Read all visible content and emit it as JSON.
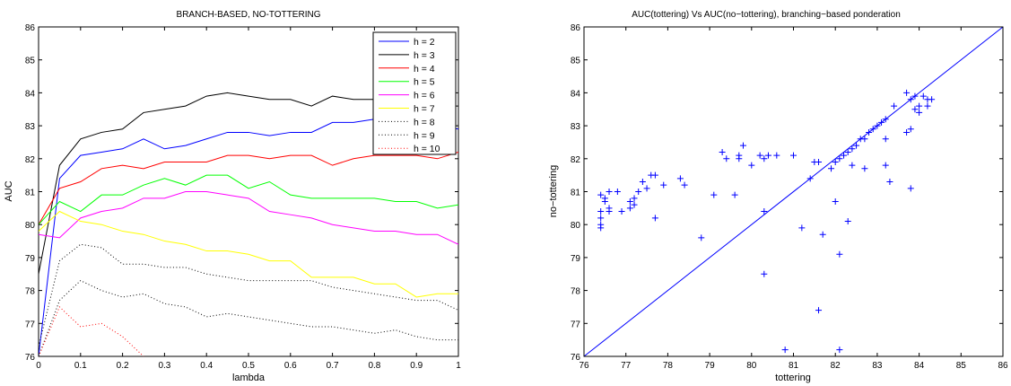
{
  "chart_data": [
    {
      "type": "line",
      "title": "BRANCH-BASED, NO-TOTTERING",
      "xlabel": "lambda",
      "ylabel": "AUC",
      "xlim": [
        0,
        1
      ],
      "ylim": [
        76,
        86
      ],
      "xticks": [
        0,
        0.1,
        0.2,
        0.3,
        0.4,
        0.5,
        0.6,
        0.7,
        0.8,
        0.9,
        1
      ],
      "xtick_labels": [
        "0",
        "0.1",
        "0.2",
        "0.3",
        "0.4",
        "0.5",
        "0.6",
        "0.7",
        "0.8",
        "0.9",
        "1"
      ],
      "yticks": [
        76,
        77,
        78,
        79,
        80,
        81,
        82,
        83,
        84,
        85,
        86
      ],
      "ytick_labels": [
        "76",
        "77",
        "78",
        "79",
        "80",
        "81",
        "82",
        "83",
        "84",
        "85",
        "86"
      ],
      "grid": false,
      "legend_position": "top-right",
      "x": [
        0,
        0.05,
        0.1,
        0.15,
        0.2,
        0.25,
        0.3,
        0.35,
        0.4,
        0.45,
        0.5,
        0.55,
        0.6,
        0.65,
        0.7,
        0.75,
        0.8,
        0.85,
        0.9,
        0.95,
        1
      ],
      "series": [
        {
          "name": "h = 2",
          "color": "#0000ff",
          "style": "solid",
          "values": [
            76.0,
            81.4,
            82.1,
            82.2,
            82.3,
            82.6,
            82.3,
            82.4,
            82.6,
            82.8,
            82.8,
            82.7,
            82.8,
            82.8,
            83.1,
            83.1,
            83.2,
            83.2,
            83.1,
            83.0,
            82.9
          ]
        },
        {
          "name": "h = 3",
          "color": "#000000",
          "style": "solid",
          "values": [
            78.5,
            81.8,
            82.6,
            82.8,
            82.9,
            83.4,
            83.5,
            83.6,
            83.9,
            84.0,
            83.9,
            83.8,
            83.8,
            83.6,
            83.9,
            83.8,
            83.8,
            83.7,
            83.6,
            83.6,
            83.6
          ]
        },
        {
          "name": "h = 4",
          "color": "#ff0000",
          "style": "solid",
          "values": [
            80.0,
            81.1,
            81.3,
            81.7,
            81.8,
            81.7,
            81.9,
            81.9,
            81.9,
            82.1,
            82.1,
            82.0,
            82.1,
            82.1,
            81.8,
            82.0,
            82.1,
            82.1,
            82.1,
            82.0,
            82.2
          ]
        },
        {
          "name": "h = 5",
          "color": "#00ff00",
          "style": "solid",
          "values": [
            80.0,
            80.7,
            80.4,
            80.9,
            80.9,
            81.2,
            81.4,
            81.2,
            81.5,
            81.5,
            81.1,
            81.3,
            80.9,
            80.8,
            80.8,
            80.8,
            80.8,
            80.7,
            80.7,
            80.5,
            80.6
          ]
        },
        {
          "name": "h = 6",
          "color": "#ff00ff",
          "style": "solid",
          "values": [
            79.7,
            79.6,
            80.2,
            80.4,
            80.5,
            80.8,
            80.8,
            81.0,
            81.0,
            80.9,
            80.8,
            80.4,
            80.3,
            80.2,
            80.0,
            79.9,
            79.8,
            79.8,
            79.7,
            79.7,
            79.4
          ]
        },
        {
          "name": "h = 7",
          "color": "#ffff00",
          "style": "solid",
          "values": [
            79.8,
            80.4,
            80.1,
            80.0,
            79.8,
            79.7,
            79.5,
            79.4,
            79.2,
            79.2,
            79.1,
            78.9,
            78.9,
            78.4,
            78.4,
            78.4,
            78.2,
            78.2,
            77.8,
            77.9,
            77.9
          ]
        },
        {
          "name": "h = 8",
          "color": "#000000",
          "style": "dotted",
          "values": [
            76.3,
            78.9,
            79.4,
            79.3,
            78.8,
            78.8,
            78.7,
            78.7,
            78.5,
            78.4,
            78.3,
            78.3,
            78.3,
            78.3,
            78.1,
            78.0,
            77.9,
            77.8,
            77.7,
            77.7,
            77.4
          ]
        },
        {
          "name": "h = 9",
          "color": "#000000",
          "style": "dotted",
          "values": [
            76.0,
            77.7,
            78.3,
            78.0,
            77.8,
            77.9,
            77.6,
            77.5,
            77.2,
            77.3,
            77.2,
            77.1,
            77.0,
            76.9,
            76.9,
            76.8,
            76.7,
            76.8,
            76.6,
            76.5,
            76.5
          ]
        },
        {
          "name": "h = 10",
          "color": "#ff0000",
          "style": "dotted",
          "values": [
            76.0,
            77.5,
            76.9,
            77.0,
            76.6,
            76.0,
            null,
            null,
            null,
            null,
            null,
            null,
            null,
            null,
            null,
            null,
            null,
            null,
            null,
            null,
            null
          ]
        }
      ]
    },
    {
      "type": "scatter",
      "title": "AUC(tottering) Vs AUC(no−tottering), branching−based ponderation",
      "xlabel": "tottering",
      "ylabel": "no−tottering",
      "xlim": [
        76,
        86
      ],
      "ylim": [
        76,
        86
      ],
      "xticks": [
        76,
        77,
        78,
        79,
        80,
        81,
        82,
        83,
        84,
        85,
        86
      ],
      "xtick_labels": [
        "76",
        "77",
        "78",
        "79",
        "80",
        "81",
        "82",
        "83",
        "84",
        "85",
        "86"
      ],
      "yticks": [
        76,
        77,
        78,
        79,
        80,
        81,
        82,
        83,
        84,
        85,
        86
      ],
      "ytick_labels": [
        "76",
        "77",
        "78",
        "79",
        "80",
        "81",
        "82",
        "83",
        "84",
        "85",
        "86"
      ],
      "grid": false,
      "marker": "+",
      "color": "#0000ff",
      "reference_line": {
        "from": [
          76,
          76
        ],
        "to": [
          86,
          86
        ]
      },
      "points": [
        [
          76.4,
          80.9
        ],
        [
          76.4,
          80.4
        ],
        [
          76.4,
          80.2
        ],
        [
          76.4,
          80.0
        ],
        [
          76.4,
          79.9
        ],
        [
          76.5,
          80.8
        ],
        [
          76.5,
          80.7
        ],
        [
          76.6,
          81.0
        ],
        [
          76.6,
          80.5
        ],
        [
          76.6,
          80.4
        ],
        [
          76.8,
          81.0
        ],
        [
          76.9,
          80.4
        ],
        [
          77.1,
          80.7
        ],
        [
          77.1,
          80.5
        ],
        [
          77.2,
          80.6
        ],
        [
          77.2,
          80.8
        ],
        [
          77.3,
          81.0
        ],
        [
          77.4,
          81.3
        ],
        [
          77.5,
          81.1
        ],
        [
          77.6,
          81.5
        ],
        [
          77.7,
          81.5
        ],
        [
          77.7,
          80.2
        ],
        [
          77.9,
          81.2
        ],
        [
          78.3,
          81.4
        ],
        [
          78.4,
          81.2
        ],
        [
          78.8,
          79.6
        ],
        [
          79.1,
          80.9
        ],
        [
          79.3,
          82.2
        ],
        [
          79.4,
          82.0
        ],
        [
          79.6,
          80.9
        ],
        [
          79.7,
          82.1
        ],
        [
          79.7,
          82.0
        ],
        [
          79.8,
          82.4
        ],
        [
          80.0,
          81.8
        ],
        [
          80.2,
          82.1
        ],
        [
          80.3,
          82.0
        ],
        [
          80.3,
          80.4
        ],
        [
          80.3,
          78.5
        ],
        [
          80.4,
          82.1
        ],
        [
          80.6,
          82.1
        ],
        [
          80.8,
          76.2
        ],
        [
          81.0,
          82.1
        ],
        [
          81.2,
          79.9
        ],
        [
          81.4,
          81.4
        ],
        [
          81.5,
          81.9
        ],
        [
          81.6,
          81.9
        ],
        [
          81.6,
          77.4
        ],
        [
          81.7,
          79.7
        ],
        [
          81.9,
          81.7
        ],
        [
          82.0,
          80.7
        ],
        [
          82.0,
          81.9
        ],
        [
          82.1,
          79.1
        ],
        [
          82.1,
          82.0
        ],
        [
          82.1,
          76.2
        ],
        [
          82.2,
          82.1
        ],
        [
          82.3,
          82.2
        ],
        [
          82.3,
          80.1
        ],
        [
          82.4,
          82.3
        ],
        [
          82.4,
          81.8
        ],
        [
          82.5,
          82.4
        ],
        [
          82.6,
          82.6
        ],
        [
          82.7,
          82.6
        ],
        [
          82.7,
          81.7
        ],
        [
          82.8,
          82.8
        ],
        [
          82.9,
          82.9
        ],
        [
          83.0,
          83.0
        ],
        [
          83.1,
          83.1
        ],
        [
          83.2,
          83.2
        ],
        [
          83.2,
          81.8
        ],
        [
          83.2,
          82.6
        ],
        [
          83.3,
          81.3
        ],
        [
          83.4,
          83.6
        ],
        [
          83.7,
          84.0
        ],
        [
          83.7,
          82.8
        ],
        [
          83.8,
          83.8
        ],
        [
          83.8,
          81.1
        ],
        [
          83.8,
          82.9
        ],
        [
          83.9,
          83.9
        ],
        [
          83.9,
          83.5
        ],
        [
          84.0,
          83.4
        ],
        [
          84.0,
          83.6
        ],
        [
          84.1,
          83.9
        ],
        [
          84.2,
          83.6
        ],
        [
          84.3,
          83.8
        ],
        [
          84.2,
          83.8
        ]
      ]
    }
  ]
}
